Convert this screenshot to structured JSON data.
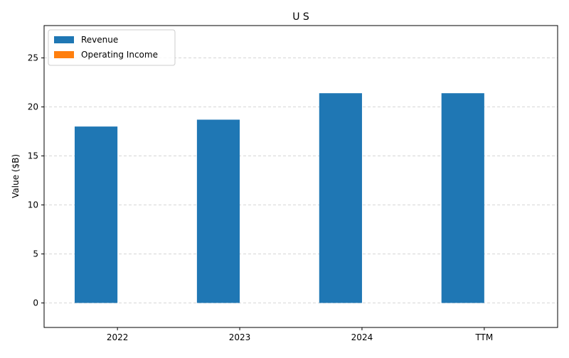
{
  "chart_data": {
    "type": "bar",
    "title": "U S",
    "xlabel": "",
    "ylabel": "Value ($B)",
    "categories": [
      "2022",
      "2023",
      "2024",
      "TTM"
    ],
    "series": [
      {
        "name": "Revenue",
        "values": [
          18.0,
          18.7,
          21.4,
          21.4
        ],
        "color": "#1f77b4"
      },
      {
        "name": "Operating Income",
        "values": [
          0,
          0,
          0,
          0
        ],
        "color": "#ff7f0e"
      }
    ],
    "ylim": [
      -2.5,
      28.3
    ],
    "yticks": [
      0,
      5,
      10,
      15,
      20,
      25
    ],
    "grid": true,
    "legend_position": "top-left"
  }
}
